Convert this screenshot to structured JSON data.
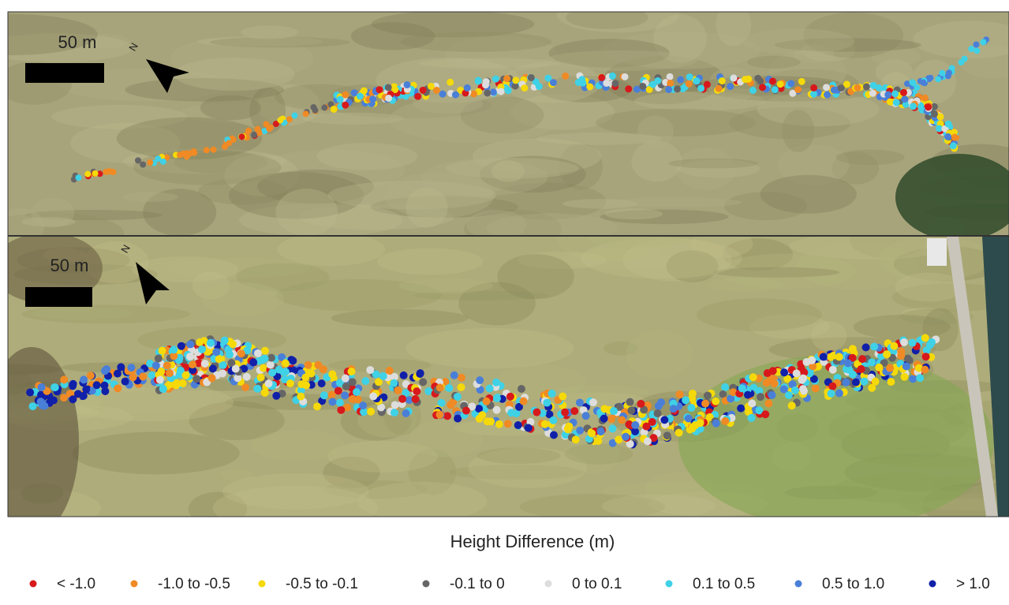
{
  "panels": [
    {
      "scale_label": "50 m",
      "north_label": "N"
    },
    {
      "scale_label": "50 m",
      "north_label": "N"
    }
  ],
  "legend": {
    "title": "Height Difference (m)",
    "items": [
      {
        "label": "< -1.0",
        "color": "#d7191c"
      },
      {
        "label": "-1.0 to -0.5",
        "color": "#f08a24"
      },
      {
        "label": "-0.5 to -0.1",
        "color": "#f5d90a"
      },
      {
        "label": "-0.1 to 0",
        "color": "#666666"
      },
      {
        "label": "0 to 0.1",
        "color": "#dddddd"
      },
      {
        "label": "0.1 to 0.5",
        "color": "#3fd1e6"
      },
      {
        "label": "0.5 to 1.0",
        "color": "#4a7fd8"
      },
      {
        "label": "> 1.0",
        "color": "#1020a8"
      }
    ]
  }
}
